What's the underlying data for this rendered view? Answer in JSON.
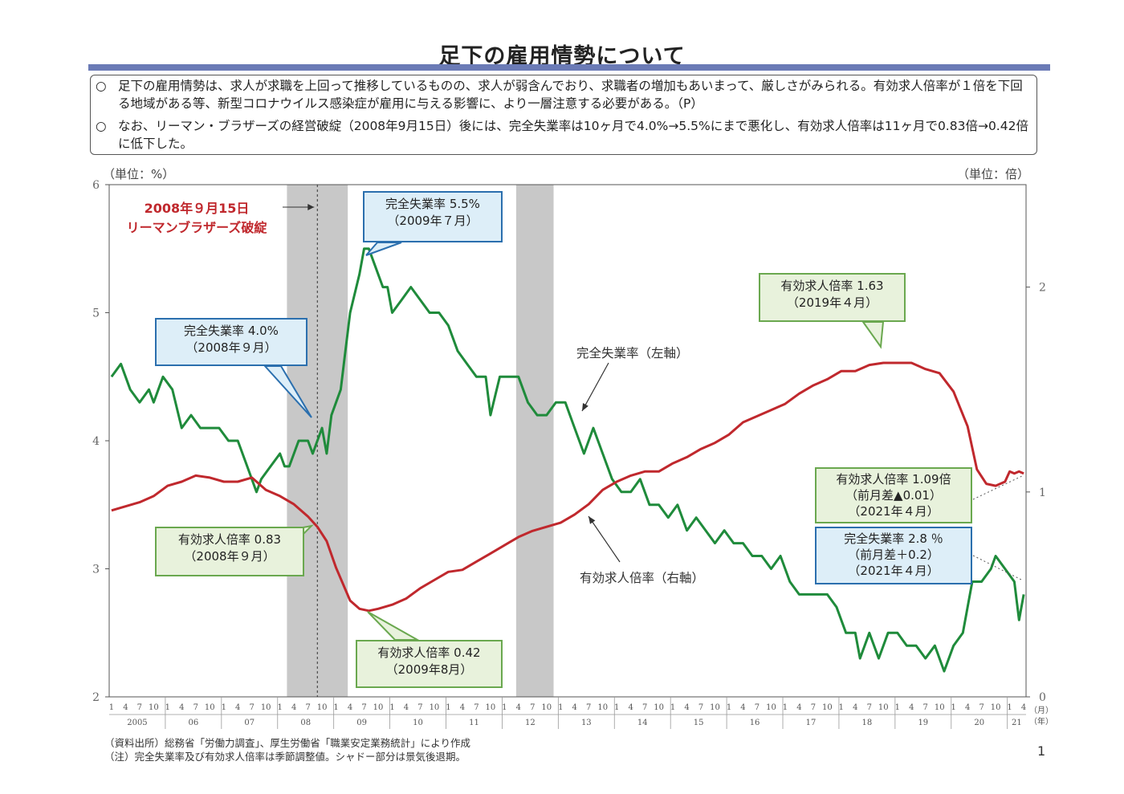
{
  "header": {
    "title": "足下の雇用情勢について",
    "bullets": [
      {
        "marker": "○",
        "text": "足下の雇用情勢は、求人が求職を上回って推移しているものの、求人が弱含んでおり、求職者の増加もあいまって、厳しさがみられる。有効求人倍率が１倍を下回る地域がある等、新型コロナウイルス感染症が雇用に与える影響に、より一層注意する必要がある。（P）"
      },
      {
        "marker": "○",
        "text": "なお、リーマン・ブラザーズの経営破綻（2008年9月15日）後には、完全失業率は10ヶ月で4.0%→5.5%にまで悪化し、有効求人倍率は11ヶ月で0.83倍→0.42倍に低下した。"
      }
    ]
  },
  "chart_data": {
    "type": "line",
    "unit_left": "（単位：%）",
    "unit_right": "（単位：倍）",
    "y_left": {
      "min": 2,
      "max": 6,
      "ticks": [
        "2",
        "3",
        "4",
        "5",
        "6"
      ]
    },
    "y_right": {
      "min": 0,
      "max": 2.5,
      "ticks": [
        "0",
        "1",
        "2"
      ]
    },
    "x_range": {
      "start": "2005-01",
      "end": "2021-04"
    },
    "month_ticks": [
      "1",
      "4",
      "7",
      "10"
    ],
    "years": [
      "2005",
      "06",
      "07",
      "08",
      "09",
      "10",
      "11",
      "12",
      "13",
      "14",
      "15",
      "16",
      "17",
      "18",
      "19",
      "20",
      "21"
    ],
    "x_month_unit": "（月）",
    "x_year_unit": "（年）",
    "recessions": [
      {
        "start": "2008-03",
        "end": "2009-03"
      },
      {
        "start": "2012-04",
        "end": "2012-11"
      }
    ],
    "event_line": "2008-09",
    "series": [
      {
        "name": "完全失業率（左軸）",
        "axis": "left",
        "color": "#1f8b3b",
        "points": [
          [
            "2005-01",
            4.5
          ],
          [
            "2005-03",
            4.6
          ],
          [
            "2005-05",
            4.4
          ],
          [
            "2005-07",
            4.3
          ],
          [
            "2005-09",
            4.4
          ],
          [
            "2005-10",
            4.3
          ],
          [
            "2005-12",
            4.5
          ],
          [
            "2006-02",
            4.4
          ],
          [
            "2006-04",
            4.1
          ],
          [
            "2006-06",
            4.2
          ],
          [
            "2006-08",
            4.1
          ],
          [
            "2006-10",
            4.1
          ],
          [
            "2006-12",
            4.1
          ],
          [
            "2007-02",
            4.0
          ],
          [
            "2007-04",
            4.0
          ],
          [
            "2007-06",
            3.8
          ],
          [
            "2007-08",
            3.6
          ],
          [
            "2007-09",
            3.7
          ],
          [
            "2007-11",
            3.8
          ],
          [
            "2008-01",
            3.9
          ],
          [
            "2008-02",
            3.8
          ],
          [
            "2008-03",
            3.8
          ],
          [
            "2008-05",
            4.0
          ],
          [
            "2008-07",
            4.0
          ],
          [
            "2008-08",
            3.9
          ],
          [
            "2008-09",
            4.0
          ],
          [
            "2008-10",
            4.1
          ],
          [
            "2008-11",
            3.9
          ],
          [
            "2008-12",
            4.2
          ],
          [
            "2009-01",
            4.3
          ],
          [
            "2009-02",
            4.4
          ],
          [
            "2009-03",
            4.7
          ],
          [
            "2009-04",
            5.0
          ],
          [
            "2009-06",
            5.3
          ],
          [
            "2009-07",
            5.5
          ],
          [
            "2009-08",
            5.5
          ],
          [
            "2009-09",
            5.4
          ],
          [
            "2009-11",
            5.2
          ],
          [
            "2009-12",
            5.2
          ],
          [
            "2010-01",
            5.0
          ],
          [
            "2010-03",
            5.1
          ],
          [
            "2010-05",
            5.2
          ],
          [
            "2010-07",
            5.1
          ],
          [
            "2010-09",
            5.0
          ],
          [
            "2010-11",
            5.0
          ],
          [
            "2011-01",
            4.9
          ],
          [
            "2011-03",
            4.7
          ],
          [
            "2011-05",
            4.6
          ],
          [
            "2011-07",
            4.5
          ],
          [
            "2011-09",
            4.5
          ],
          [
            "2011-10",
            4.2
          ],
          [
            "2011-12",
            4.5
          ],
          [
            "2012-02",
            4.5
          ],
          [
            "2012-04",
            4.5
          ],
          [
            "2012-06",
            4.3
          ],
          [
            "2012-08",
            4.2
          ],
          [
            "2012-10",
            4.2
          ],
          [
            "2012-12",
            4.3
          ],
          [
            "2013-02",
            4.3
          ],
          [
            "2013-04",
            4.1
          ],
          [
            "2013-06",
            3.9
          ],
          [
            "2013-08",
            4.1
          ],
          [
            "2013-10",
            3.9
          ],
          [
            "2013-12",
            3.7
          ],
          [
            "2014-02",
            3.6
          ],
          [
            "2014-04",
            3.6
          ],
          [
            "2014-06",
            3.7
          ],
          [
            "2014-08",
            3.5
          ],
          [
            "2014-10",
            3.5
          ],
          [
            "2014-12",
            3.4
          ],
          [
            "2015-02",
            3.5
          ],
          [
            "2015-04",
            3.3
          ],
          [
            "2015-06",
            3.4
          ],
          [
            "2015-08",
            3.3
          ],
          [
            "2015-10",
            3.2
          ],
          [
            "2015-12",
            3.3
          ],
          [
            "2016-02",
            3.2
          ],
          [
            "2016-04",
            3.2
          ],
          [
            "2016-06",
            3.1
          ],
          [
            "2016-08",
            3.1
          ],
          [
            "2016-10",
            3.0
          ],
          [
            "2016-12",
            3.1
          ],
          [
            "2017-02",
            2.9
          ],
          [
            "2017-04",
            2.8
          ],
          [
            "2017-06",
            2.8
          ],
          [
            "2017-08",
            2.8
          ],
          [
            "2017-10",
            2.8
          ],
          [
            "2017-12",
            2.7
          ],
          [
            "2018-02",
            2.5
          ],
          [
            "2018-04",
            2.5
          ],
          [
            "2018-05",
            2.3
          ],
          [
            "2018-07",
            2.5
          ],
          [
            "2018-09",
            2.3
          ],
          [
            "2018-11",
            2.5
          ],
          [
            "2019-01",
            2.5
          ],
          [
            "2019-03",
            2.4
          ],
          [
            "2019-05",
            2.4
          ],
          [
            "2019-07",
            2.3
          ],
          [
            "2019-09",
            2.4
          ],
          [
            "2019-11",
            2.2
          ],
          [
            "2020-01",
            2.4
          ],
          [
            "2020-03",
            2.5
          ],
          [
            "2020-05",
            2.9
          ],
          [
            "2020-07",
            2.9
          ],
          [
            "2020-09",
            3.0
          ],
          [
            "2020-10",
            3.1
          ],
          [
            "2020-12",
            3.0
          ],
          [
            "2021-02",
            2.9
          ],
          [
            "2021-03",
            2.6
          ],
          [
            "2021-04",
            2.8
          ]
        ]
      },
      {
        "name": "有効求人倍率（右軸）",
        "axis": "right",
        "color": "#c0282d",
        "points": [
          [
            "2005-01",
            0.91
          ],
          [
            "2005-04",
            0.93
          ],
          [
            "2005-07",
            0.95
          ],
          [
            "2005-10",
            0.98
          ],
          [
            "2006-01",
            1.03
          ],
          [
            "2006-04",
            1.05
          ],
          [
            "2006-07",
            1.08
          ],
          [
            "2006-10",
            1.07
          ],
          [
            "2007-01",
            1.05
          ],
          [
            "2007-04",
            1.05
          ],
          [
            "2007-07",
            1.07
          ],
          [
            "2007-10",
            1.01
          ],
          [
            "2008-01",
            0.98
          ],
          [
            "2008-04",
            0.94
          ],
          [
            "2008-07",
            0.88
          ],
          [
            "2008-09",
            0.83
          ],
          [
            "2008-11",
            0.76
          ],
          [
            "2009-01",
            0.63
          ],
          [
            "2009-04",
            0.47
          ],
          [
            "2009-06",
            0.43
          ],
          [
            "2009-08",
            0.42
          ],
          [
            "2009-10",
            0.43
          ],
          [
            "2010-01",
            0.45
          ],
          [
            "2010-04",
            0.48
          ],
          [
            "2010-07",
            0.53
          ],
          [
            "2010-10",
            0.57
          ],
          [
            "2011-01",
            0.61
          ],
          [
            "2011-04",
            0.62
          ],
          [
            "2011-07",
            0.66
          ],
          [
            "2011-10",
            0.7
          ],
          [
            "2012-01",
            0.74
          ],
          [
            "2012-04",
            0.78
          ],
          [
            "2012-07",
            0.81
          ],
          [
            "2012-10",
            0.83
          ],
          [
            "2013-01",
            0.85
          ],
          [
            "2013-04",
            0.89
          ],
          [
            "2013-07",
            0.94
          ],
          [
            "2013-10",
            1.01
          ],
          [
            "2014-01",
            1.05
          ],
          [
            "2014-04",
            1.08
          ],
          [
            "2014-07",
            1.1
          ],
          [
            "2014-10",
            1.1
          ],
          [
            "2015-01",
            1.14
          ],
          [
            "2015-04",
            1.17
          ],
          [
            "2015-07",
            1.21
          ],
          [
            "2015-10",
            1.24
          ],
          [
            "2016-01",
            1.28
          ],
          [
            "2016-04",
            1.34
          ],
          [
            "2016-07",
            1.37
          ],
          [
            "2016-10",
            1.4
          ],
          [
            "2017-01",
            1.43
          ],
          [
            "2017-04",
            1.48
          ],
          [
            "2017-07",
            1.52
          ],
          [
            "2017-10",
            1.55
          ],
          [
            "2018-01",
            1.59
          ],
          [
            "2018-04",
            1.59
          ],
          [
            "2018-07",
            1.62
          ],
          [
            "2018-10",
            1.63
          ],
          [
            "2019-01",
            1.63
          ],
          [
            "2019-04",
            1.63
          ],
          [
            "2019-07",
            1.6
          ],
          [
            "2019-10",
            1.58
          ],
          [
            "2020-01",
            1.49
          ],
          [
            "2020-04",
            1.32
          ],
          [
            "2020-06",
            1.11
          ],
          [
            "2020-08",
            1.04
          ],
          [
            "2020-10",
            1.03
          ],
          [
            "2020-12",
            1.05
          ],
          [
            "2021-01",
            1.1
          ],
          [
            "2021-02",
            1.09
          ],
          [
            "2021-03",
            1.1
          ],
          [
            "2021-04",
            1.09
          ]
        ]
      }
    ],
    "series_labels": {
      "unemployment": "完全失業率（左軸）",
      "jobs_ratio": "有効求人倍率（右軸）"
    },
    "annotations": {
      "lehman": {
        "line1": "2008年９月15日",
        "line2": "リーマンブラザーズ破綻"
      },
      "unemp_2008": {
        "line1": "完全失業率 4.0%",
        "line2": "（2008年９月）"
      },
      "unemp_2009": {
        "line1": "完全失業率 5.5%",
        "line2": "（2009年７月）"
      },
      "ratio_2008": {
        "line1": "有効求人倍率 0.83",
        "line2": "（2008年９月）"
      },
      "ratio_2009": {
        "line1": "有効求人倍率 0.42",
        "line2": "（2009年8月）"
      },
      "ratio_2019": {
        "line1": "有効求人倍率 1.63",
        "line2": "（2019年４月）"
      },
      "ratio_2021": {
        "line1": "有効求人倍率 1.09倍",
        "line2": "（前月差▲0.01）",
        "line3": "（2021年４月）"
      },
      "unemp_2021": {
        "line1": "完全失業率 2.8 ％",
        "line2": "（前月差＋0.2）",
        "line3": "（2021年４月）"
      }
    }
  },
  "footer": {
    "source": "（資料出所）総務省「労働力調査」、厚生労働省「職業安定業務統計」により作成",
    "note": "（注）完全失業率及び有効求人倍率は季節調整値。シャドー部分は景気後退期。",
    "page": "1"
  }
}
